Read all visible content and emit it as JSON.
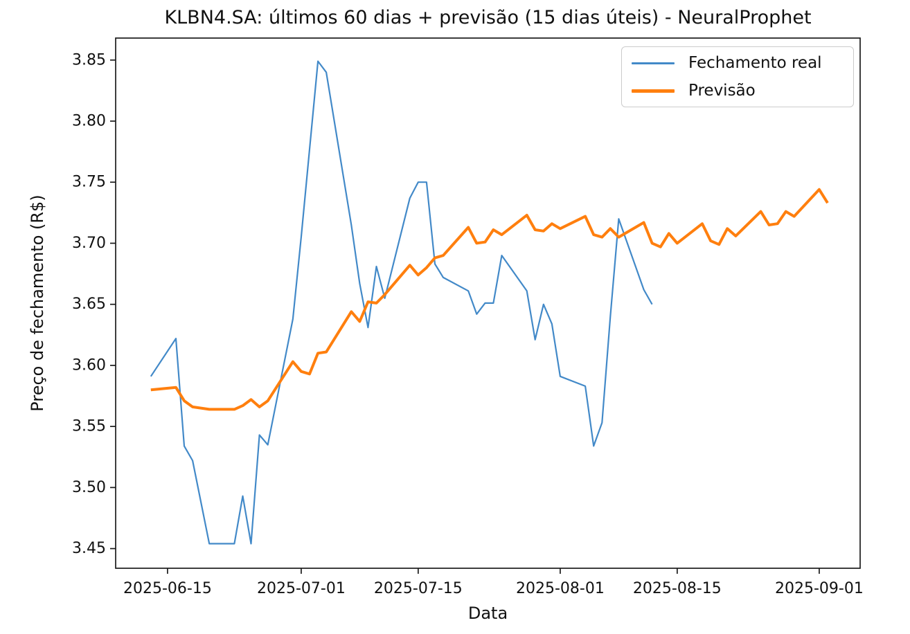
{
  "title": "KLBN4.SA: últimos 60 dias + previsão (15 dias úteis) - NeuralProphet",
  "axes": {
    "x_label": "Data",
    "y_label": "Preço de fechamento (R$)"
  },
  "legend": {
    "items": [
      {
        "label": "Fechamento real",
        "color": "#4289c8"
      },
      {
        "label": "Previsão",
        "color": "#ff7f0e"
      }
    ]
  },
  "chart_data": {
    "type": "line",
    "title": "KLBN4.SA: últimos 60 dias + previsão (15 dias úteis) - NeuralProphet",
    "xlabel": "Data",
    "ylabel": "Preço de fechamento (R$)",
    "grid": false,
    "legend_position": "upper right",
    "xlim": [
      "2025-06-08T19:00:00Z",
      "2025-09-05T21:30:00Z"
    ],
    "ylim": [
      3.4339,
      3.868
    ],
    "x_ticks": [
      "2025-06-15",
      "2025-07-01",
      "2025-07-15",
      "2025-08-01",
      "2025-08-15",
      "2025-09-01"
    ],
    "y_ticks": [
      3.45,
      3.5,
      3.55,
      3.6,
      3.65,
      3.7,
      3.75,
      3.8,
      3.85
    ],
    "series": [
      {
        "name": "Fechamento real",
        "color": "#4289c8",
        "width": 2.2,
        "points": [
          [
            "2025-06-13",
            3.591
          ],
          [
            "2025-06-16",
            3.622
          ],
          [
            "2025-06-17",
            3.534
          ],
          [
            "2025-06-18",
            3.522
          ],
          [
            "2025-06-20",
            3.454
          ],
          [
            "2025-06-23",
            3.454
          ],
          [
            "2025-06-24",
            3.493
          ],
          [
            "2025-06-25",
            3.454
          ],
          [
            "2025-06-26",
            3.543
          ],
          [
            "2025-06-27",
            3.535
          ],
          [
            "2025-06-30",
            3.638
          ],
          [
            "2025-07-01",
            3.705
          ],
          [
            "2025-07-02",
            3.777
          ],
          [
            "2025-07-03",
            3.849
          ],
          [
            "2025-07-04",
            3.84
          ],
          [
            "2025-07-07",
            3.715
          ],
          [
            "2025-07-08",
            3.667
          ],
          [
            "2025-07-09",
            3.631
          ],
          [
            "2025-07-10",
            3.681
          ],
          [
            "2025-07-11",
            3.655
          ],
          [
            "2025-07-14",
            3.737
          ],
          [
            "2025-07-15",
            3.75
          ],
          [
            "2025-07-16",
            3.75
          ],
          [
            "2025-07-17",
            3.683
          ],
          [
            "2025-07-18",
            3.672
          ],
          [
            "2025-07-21",
            3.661
          ],
          [
            "2025-07-22",
            3.642
          ],
          [
            "2025-07-23",
            3.651
          ],
          [
            "2025-07-24",
            3.651
          ],
          [
            "2025-07-25",
            3.69
          ],
          [
            "2025-07-28",
            3.661
          ],
          [
            "2025-07-29",
            3.621
          ],
          [
            "2025-07-30",
            3.65
          ],
          [
            "2025-07-31",
            3.634
          ],
          [
            "2025-08-01",
            3.591
          ],
          [
            "2025-08-04",
            3.583
          ],
          [
            "2025-08-05",
            3.534
          ],
          [
            "2025-08-06",
            3.553
          ],
          [
            "2025-08-07",
            3.64
          ],
          [
            "2025-08-08",
            3.72
          ],
          [
            "2025-08-11",
            3.662
          ],
          [
            "2025-08-12",
            3.65
          ]
        ]
      },
      {
        "name": "Previsão",
        "color": "#ff7f0e",
        "width": 4,
        "points": [
          [
            "2025-06-13",
            3.58
          ],
          [
            "2025-06-16",
            3.582
          ],
          [
            "2025-06-17",
            3.571
          ],
          [
            "2025-06-18",
            3.566
          ],
          [
            "2025-06-20",
            3.564
          ],
          [
            "2025-06-23",
            3.564
          ],
          [
            "2025-06-24",
            3.567
          ],
          [
            "2025-06-25",
            3.572
          ],
          [
            "2025-06-26",
            3.566
          ],
          [
            "2025-06-27",
            3.571
          ],
          [
            "2025-06-30",
            3.603
          ],
          [
            "2025-07-01",
            3.595
          ],
          [
            "2025-07-02",
            3.593
          ],
          [
            "2025-07-03",
            3.61
          ],
          [
            "2025-07-04",
            3.611
          ],
          [
            "2025-07-07",
            3.644
          ],
          [
            "2025-07-08",
            3.636
          ],
          [
            "2025-07-09",
            3.652
          ],
          [
            "2025-07-10",
            3.651
          ],
          [
            "2025-07-11",
            3.658
          ],
          [
            "2025-07-14",
            3.682
          ],
          [
            "2025-07-15",
            3.674
          ],
          [
            "2025-07-16",
            3.68
          ],
          [
            "2025-07-17",
            3.688
          ],
          [
            "2025-07-18",
            3.69
          ],
          [
            "2025-07-21",
            3.713
          ],
          [
            "2025-07-22",
            3.7
          ],
          [
            "2025-07-23",
            3.701
          ],
          [
            "2025-07-24",
            3.711
          ],
          [
            "2025-07-25",
            3.707
          ],
          [
            "2025-07-28",
            3.723
          ],
          [
            "2025-07-29",
            3.711
          ],
          [
            "2025-07-30",
            3.71
          ],
          [
            "2025-07-31",
            3.716
          ],
          [
            "2025-08-01",
            3.712
          ],
          [
            "2025-08-04",
            3.722
          ],
          [
            "2025-08-05",
            3.707
          ],
          [
            "2025-08-06",
            3.705
          ],
          [
            "2025-08-07",
            3.712
          ],
          [
            "2025-08-08",
            3.705
          ],
          [
            "2025-08-11",
            3.717
          ],
          [
            "2025-08-12",
            3.7
          ],
          [
            "2025-08-13",
            3.697
          ],
          [
            "2025-08-14",
            3.708
          ],
          [
            "2025-08-15",
            3.7
          ],
          [
            "2025-08-18",
            3.716
          ],
          [
            "2025-08-19",
            3.702
          ],
          [
            "2025-08-20",
            3.699
          ],
          [
            "2025-08-21",
            3.712
          ],
          [
            "2025-08-22",
            3.706
          ],
          [
            "2025-08-25",
            3.726
          ],
          [
            "2025-08-26",
            3.715
          ],
          [
            "2025-08-27",
            3.716
          ],
          [
            "2025-08-28",
            3.726
          ],
          [
            "2025-08-29",
            3.722
          ],
          [
            "2025-09-01",
            3.744
          ],
          [
            "2025-09-02",
            3.733
          ]
        ]
      }
    ]
  }
}
